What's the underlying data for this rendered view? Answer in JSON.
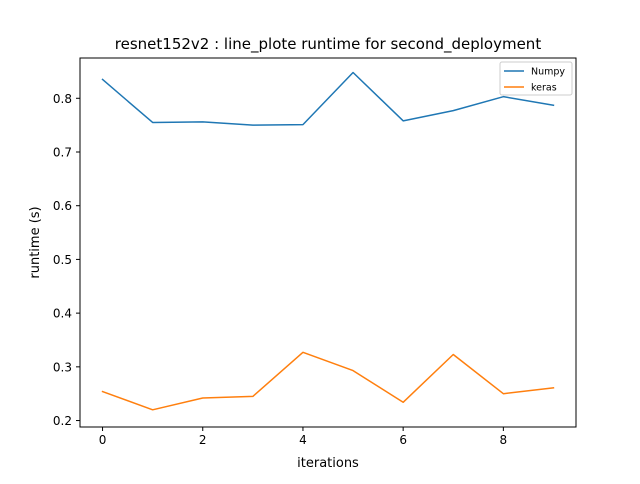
{
  "chart_data": {
    "type": "line",
    "title": "resnet152v2 : line_plote runtime  for second_deployment",
    "xlabel": "iterations",
    "ylabel": "runtime (s)",
    "x": [
      0,
      1,
      2,
      3,
      4,
      5,
      6,
      7,
      8,
      9
    ],
    "xlim": [
      -0.45,
      9.45
    ],
    "ylim": [
      0.188,
      0.875
    ],
    "xticks": [
      0,
      2,
      4,
      6,
      8
    ],
    "yticks": [
      0.2,
      0.3,
      0.4,
      0.5,
      0.6,
      0.7,
      0.8
    ],
    "grid": false,
    "legend_position": "top-right",
    "series": [
      {
        "name": "Numpy",
        "color": "#1f77b4",
        "values": [
          0.835,
          0.755,
          0.756,
          0.75,
          0.751,
          0.848,
          0.758,
          0.777,
          0.803,
          0.787
        ]
      },
      {
        "name": "keras",
        "color": "#ff7f0e",
        "values": [
          0.254,
          0.22,
          0.242,
          0.245,
          0.327,
          0.293,
          0.234,
          0.323,
          0.25,
          0.261
        ]
      }
    ]
  }
}
